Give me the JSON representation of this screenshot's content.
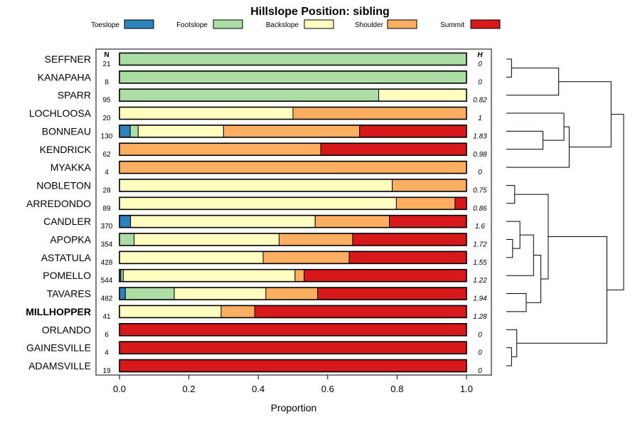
{
  "chart_data": {
    "type": "bar",
    "orientation": "horizontal-stacked",
    "title": "Hillslope Position: sibling",
    "xlabel": "Proportion",
    "ylabel": "",
    "xlim": [
      0,
      1
    ],
    "xticks": [
      0,
      0.2,
      0.4,
      0.6,
      0.8,
      1
    ],
    "xtick_labels": [
      "0.0",
      "0.2",
      "0.4",
      "0.6",
      "0.8",
      "1.0"
    ],
    "n_header": "N",
    "h_header": "H",
    "legend_position": "top",
    "categories": [
      "Toeslope",
      "Footslope",
      "Backslope",
      "Shoulder",
      "Summit"
    ],
    "colors": [
      "#2b83ba",
      "#abdda4",
      "#ffffbf",
      "#fdae61",
      "#d7191c"
    ],
    "highlight_row": "MILLHOPPER",
    "rows": [
      {
        "label": "SEFFNER",
        "n": "21",
        "h": "0",
        "values": [
          0,
          1,
          0,
          0,
          0
        ]
      },
      {
        "label": "KANAPAHA",
        "n": "8",
        "h": "0",
        "values": [
          0,
          1,
          0,
          0,
          0
        ]
      },
      {
        "label": "SPARR",
        "n": "95",
        "h": "0.82",
        "values": [
          0,
          0.747,
          0.253,
          0,
          0
        ]
      },
      {
        "label": "LOCHLOOSA",
        "n": "20",
        "h": "1",
        "values": [
          0,
          0,
          0.5,
          0.5,
          0
        ]
      },
      {
        "label": "BONNEAU",
        "n": "130",
        "h": "1.83",
        "values": [
          0.031,
          0.023,
          0.246,
          0.392,
          0.308
        ]
      },
      {
        "label": "KENDRICK",
        "n": "62",
        "h": "0.98",
        "values": [
          0,
          0,
          0,
          0.58,
          0.42
        ]
      },
      {
        "label": "MYAKKA",
        "n": "4",
        "h": "0",
        "values": [
          0,
          0,
          0,
          1,
          0
        ]
      },
      {
        "label": "NOBLETON",
        "n": "28",
        "h": "0.75",
        "values": [
          0,
          0,
          0.786,
          0.214,
          0
        ]
      },
      {
        "label": "ARREDONDO",
        "n": "89",
        "h": "0.86",
        "values": [
          0,
          0,
          0.798,
          0.169,
          0.033
        ]
      },
      {
        "label": "CANDLER",
        "n": "370",
        "h": "1.6",
        "values": [
          0.032,
          0,
          0.532,
          0.214,
          0.222
        ]
      },
      {
        "label": "APOPKA",
        "n": "354",
        "h": "1.72",
        "values": [
          0,
          0.042,
          0.418,
          0.212,
          0.328
        ]
      },
      {
        "label": "ASTATULA",
        "n": "428",
        "h": "1.55",
        "values": [
          0,
          0,
          0.414,
          0.248,
          0.338
        ]
      },
      {
        "label": "POMELLO",
        "n": "544",
        "h": "1.22",
        "values": [
          0.004,
          0.007,
          0.495,
          0.026,
          0.468
        ]
      },
      {
        "label": "TAVARES",
        "n": "482",
        "h": "1.94",
        "values": [
          0.017,
          0.141,
          0.264,
          0.149,
          0.429
        ]
      },
      {
        "label": "MILLHOPPER",
        "n": "41",
        "h": "1.28",
        "values": [
          0,
          0,
          0.293,
          0.097,
          0.61
        ]
      },
      {
        "label": "ORLANDO",
        "n": "6",
        "h": "0",
        "values": [
          0,
          0,
          0,
          0,
          1
        ]
      },
      {
        "label": "GAINESVILLE",
        "n": "4",
        "h": "0",
        "values": [
          0,
          0,
          0,
          0,
          1
        ]
      },
      {
        "label": "ADAMSVILLE",
        "n": "19",
        "h": "0",
        "values": [
          0,
          0,
          0,
          0,
          1
        ]
      }
    ],
    "dendrogram": {
      "description": "hierarchical clustering of rows (leaf order top to bottom)",
      "nodes": [
        {
          "id": 18,
          "left": 0,
          "right": 1,
          "height": 0.05
        },
        {
          "id": 19,
          "left": 18,
          "right": 2,
          "height": 0.5
        },
        {
          "id": 20,
          "left": 4,
          "right": 5,
          "height": 0.35
        },
        {
          "id": 21,
          "left": 3,
          "right": 20,
          "height": 0.55
        },
        {
          "id": 22,
          "left": 21,
          "right": 6,
          "height": 0.6
        },
        {
          "id": 23,
          "left": 19,
          "right": 22,
          "height": 1.0
        },
        {
          "id": 24,
          "left": 7,
          "right": 8,
          "height": 0.08
        },
        {
          "id": 25,
          "left": 10,
          "right": 11,
          "height": 0.06
        },
        {
          "id": 26,
          "left": 9,
          "right": 25,
          "height": 0.13
        },
        {
          "id": 27,
          "left": 26,
          "right": 12,
          "height": 0.26
        },
        {
          "id": 28,
          "left": 13,
          "right": 14,
          "height": 0.19
        },
        {
          "id": 29,
          "left": 27,
          "right": 28,
          "height": 0.33
        },
        {
          "id": 30,
          "left": 24,
          "right": 29,
          "height": 0.4
        },
        {
          "id": 31,
          "left": 16,
          "right": 17,
          "height": 0.05
        },
        {
          "id": 32,
          "left": 15,
          "right": 31,
          "height": 0.1
        },
        {
          "id": 33,
          "left": 30,
          "right": 32,
          "height": 0.96
        },
        {
          "id": 34,
          "left": 23,
          "right": 33,
          "height": 1.12
        }
      ]
    }
  }
}
